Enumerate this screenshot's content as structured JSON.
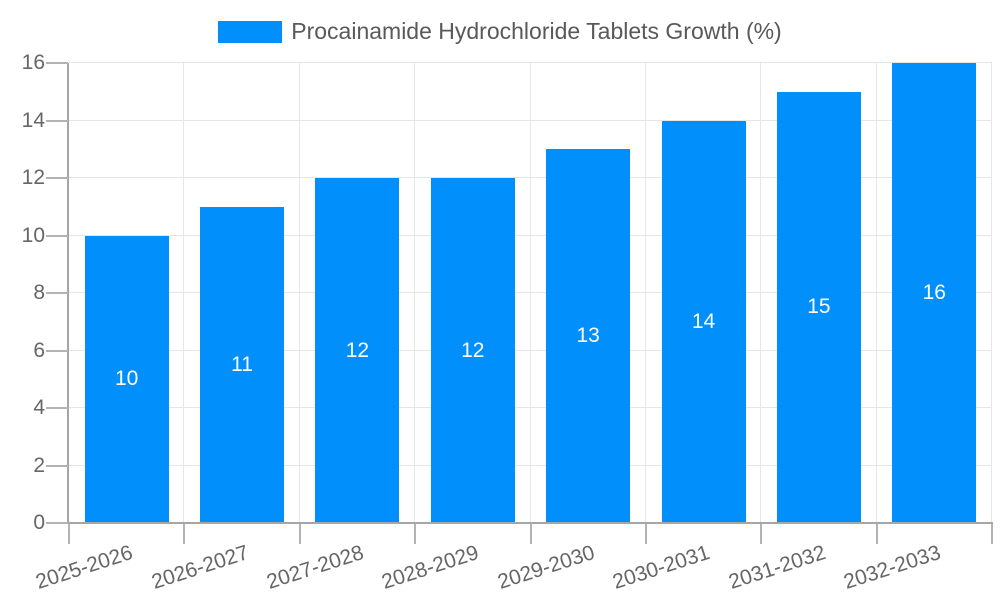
{
  "legend": {
    "label": "Procainamide Hydrochloride Tablets Growth (%)"
  },
  "chart_data": {
    "type": "bar",
    "title": "Procainamide Hydrochloride Tablets Growth (%)",
    "categories": [
      "2025-2026",
      "2026-2027",
      "2027-2028",
      "2028-2029",
      "2029-2030",
      "2030-2031",
      "2031-2032",
      "2032-2033"
    ],
    "values": [
      10,
      11,
      12,
      12,
      13,
      14,
      15,
      16
    ],
    "bar_labels": [
      "10",
      "11",
      "12",
      "12",
      "13",
      "14",
      "15",
      "16"
    ],
    "xlabel": "",
    "ylabel": "",
    "ylim": [
      0,
      16
    ],
    "yticks": [
      0,
      2,
      4,
      6,
      8,
      10,
      12,
      14,
      16
    ],
    "grid": true,
    "legend_position": "top",
    "x_label_rotation_deg": -18,
    "colors": {
      "bar": "#008FFB",
      "bar_label": "#ffffff",
      "grid": "#e6e6e6",
      "axis": "#a6a6a6",
      "tick": "#b3b3b3",
      "tick_label": "#666666",
      "legend_text": "#595959",
      "background": "#ffffff"
    }
  }
}
